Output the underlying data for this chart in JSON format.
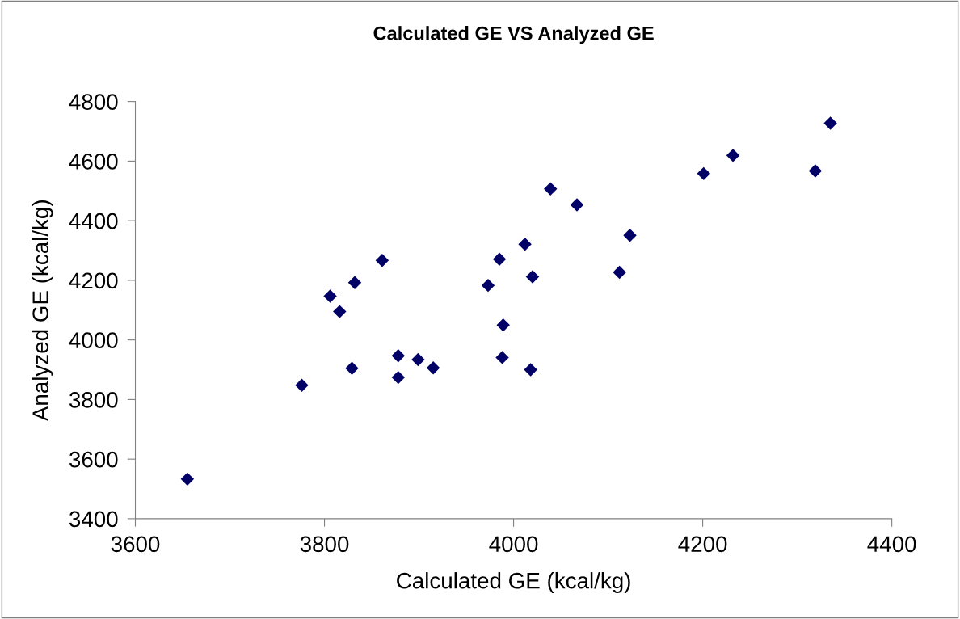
{
  "chart_data": {
    "type": "scatter",
    "title": "Calculated GE VS Analyzed GE",
    "xlabel": "Calculated GE (kcal/kg)",
    "ylabel": "Analyzed GE (kcal/kg)",
    "x": [
      3655,
      3776,
      3806,
      3816,
      3832,
      3861,
      3829,
      3878,
      3878,
      3899,
      3915,
      3973,
      3985,
      4012,
      4020,
      3989,
      3988,
      4018,
      4039,
      4067,
      4123,
      4112,
      4201,
      4232,
      4319,
      4335
    ],
    "values": [
      3533,
      3848,
      4147,
      4095,
      4192,
      4267,
      3905,
      3947,
      3874,
      3934,
      3906,
      4183,
      4271,
      4321,
      4212,
      4050,
      3941,
      3900,
      4507,
      4453,
      4351,
      4227,
      4558,
      4619,
      4567,
      4727
    ],
    "color": "#000066",
    "marker": "diamond",
    "xlim": [
      3600,
      4400
    ],
    "xticks": [
      3600,
      3800,
      4000,
      4200,
      4400
    ],
    "ylim": [
      3400,
      4800
    ],
    "yticks": [
      3400,
      3600,
      3800,
      4000,
      4200,
      4400,
      4600,
      4800
    ],
    "grid": false,
    "legend": false
  }
}
